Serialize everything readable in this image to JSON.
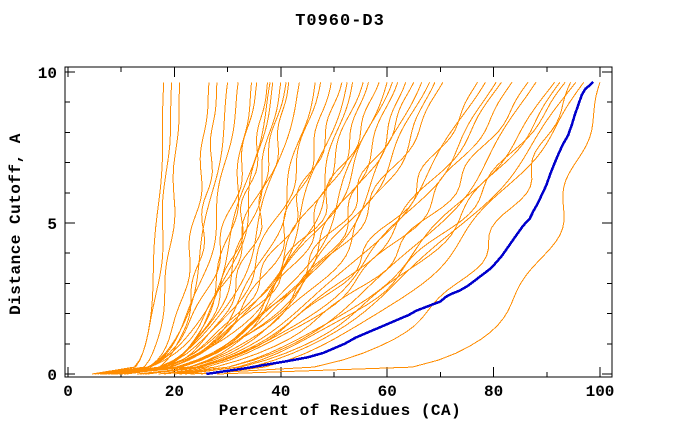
{
  "chart_data": {
    "type": "line",
    "title": "T0960-D3",
    "xlabel": "Percent of Residues (CA)",
    "ylabel": "Distance Cutoff, A",
    "xlim": [
      0,
      100
    ],
    "ylim": [
      0,
      10
    ],
    "x_major_ticks": [
      0,
      20,
      40,
      60,
      80,
      100
    ],
    "x_minor_ticks": [
      10,
      30,
      50,
      70,
      90
    ],
    "y_major_ticks": [
      0,
      5,
      10
    ],
    "y_minor_ticks": [
      1,
      2,
      3,
      4,
      6,
      7,
      8,
      9
    ],
    "grid": false,
    "legend": "none",
    "vmax": 9.67,
    "colors": {
      "models": "#ff8c00",
      "highlight": "#0000cc",
      "axis": "#000000",
      "background": "#ffffff"
    },
    "highlight_series": {
      "name": "selected-model",
      "color_key": "highlight",
      "points": [
        [
          26,
          0
        ],
        [
          29,
          0.08
        ],
        [
          33,
          0.18
        ],
        [
          37,
          0.3
        ],
        [
          41,
          0.42
        ],
        [
          45,
          0.55
        ],
        [
          48,
          0.7
        ],
        [
          50,
          0.85
        ],
        [
          52,
          1.0
        ],
        [
          54,
          1.2
        ],
        [
          56,
          1.35
        ],
        [
          58,
          1.5
        ],
        [
          60,
          1.65
        ],
        [
          62,
          1.8
        ],
        [
          64,
          1.95
        ],
        [
          65.5,
          2.1
        ],
        [
          67,
          2.2
        ],
        [
          68.5,
          2.3
        ],
        [
          70,
          2.4
        ],
        [
          71,
          2.55
        ],
        [
          72,
          2.65
        ],
        [
          73.5,
          2.75
        ],
        [
          75,
          2.9
        ],
        [
          76.5,
          3.1
        ],
        [
          78,
          3.3
        ],
        [
          79.5,
          3.5
        ],
        [
          80.5,
          3.7
        ],
        [
          81.5,
          3.9
        ],
        [
          82.5,
          4.15
        ],
        [
          83.5,
          4.4
        ],
        [
          84.5,
          4.65
        ],
        [
          85.5,
          4.9
        ],
        [
          86.8,
          5.15
        ],
        [
          87.5,
          5.4
        ],
        [
          88.3,
          5.65
        ],
        [
          89.1,
          5.95
        ],
        [
          89.9,
          6.25
        ],
        [
          90.6,
          6.6
        ],
        [
          91.4,
          6.95
        ],
        [
          92.1,
          7.25
        ],
        [
          93,
          7.6
        ],
        [
          94,
          7.9
        ],
        [
          94.7,
          8.25
        ],
        [
          95.3,
          8.6
        ],
        [
          96,
          8.95
        ],
        [
          96.6,
          9.25
        ],
        [
          97.3,
          9.45
        ],
        [
          98,
          9.55
        ],
        [
          98.7,
          9.67
        ]
      ]
    },
    "model_series": {
      "name": "server-models",
      "color_key": "models",
      "curve_model": "pct(v) = s + (e - s) * (v / vmax)^p",
      "params": [
        [
          5,
          18,
          0.14
        ],
        [
          4.5,
          19.5,
          0.17
        ],
        [
          5.5,
          21,
          0.15
        ],
        [
          5,
          26.5,
          0.2
        ],
        [
          6,
          28,
          0.18
        ],
        [
          5,
          30,
          0.24
        ],
        [
          5.5,
          32,
          0.27
        ],
        [
          6,
          34.5,
          0.22
        ],
        [
          5,
          35.5,
          0.3
        ],
        [
          6.5,
          37.5,
          0.26
        ],
        [
          5.5,
          38,
          0.32
        ],
        [
          6,
          38.5,
          0.28
        ],
        [
          7,
          40,
          0.3
        ],
        [
          5.5,
          41,
          0.34
        ],
        [
          6,
          41.5,
          0.27
        ],
        [
          6.5,
          43.5,
          0.33
        ],
        [
          6,
          46.5,
          0.3
        ],
        [
          7,
          47.5,
          0.36
        ],
        [
          6.5,
          49.5,
          0.32
        ],
        [
          7.5,
          51.5,
          0.38
        ],
        [
          6.5,
          52.5,
          0.34
        ],
        [
          8,
          53.5,
          0.3
        ],
        [
          7,
          55.5,
          0.4
        ],
        [
          8.5,
          56.5,
          0.36
        ],
        [
          7.5,
          58.5,
          0.42
        ],
        [
          9,
          60,
          0.38
        ],
        [
          8,
          61,
          0.44
        ],
        [
          9.5,
          62,
          0.4
        ],
        [
          8.5,
          63.5,
          0.36
        ],
        [
          10,
          65,
          0.45
        ],
        [
          9,
          66.5,
          0.42
        ],
        [
          10.5,
          68,
          0.46
        ],
        [
          9.5,
          69,
          0.4
        ],
        [
          11,
          70.5,
          0.48
        ],
        [
          13,
          77,
          0.45
        ],
        [
          14,
          78.5,
          0.5
        ],
        [
          13.5,
          80.5,
          0.47
        ],
        [
          15,
          81.5,
          0.52
        ],
        [
          14.5,
          83.5,
          0.48
        ],
        [
          17,
          86.5,
          0.5
        ],
        [
          18,
          88,
          0.47
        ],
        [
          20,
          91.5,
          0.52
        ],
        [
          21,
          92.5,
          0.49
        ],
        [
          22,
          93.5,
          0.53
        ],
        [
          23,
          94.5,
          0.3
        ],
        [
          25,
          95.5,
          0.54
        ],
        [
          26,
          97,
          0.5
        ],
        [
          28,
          100,
          0.18
        ]
      ]
    }
  }
}
